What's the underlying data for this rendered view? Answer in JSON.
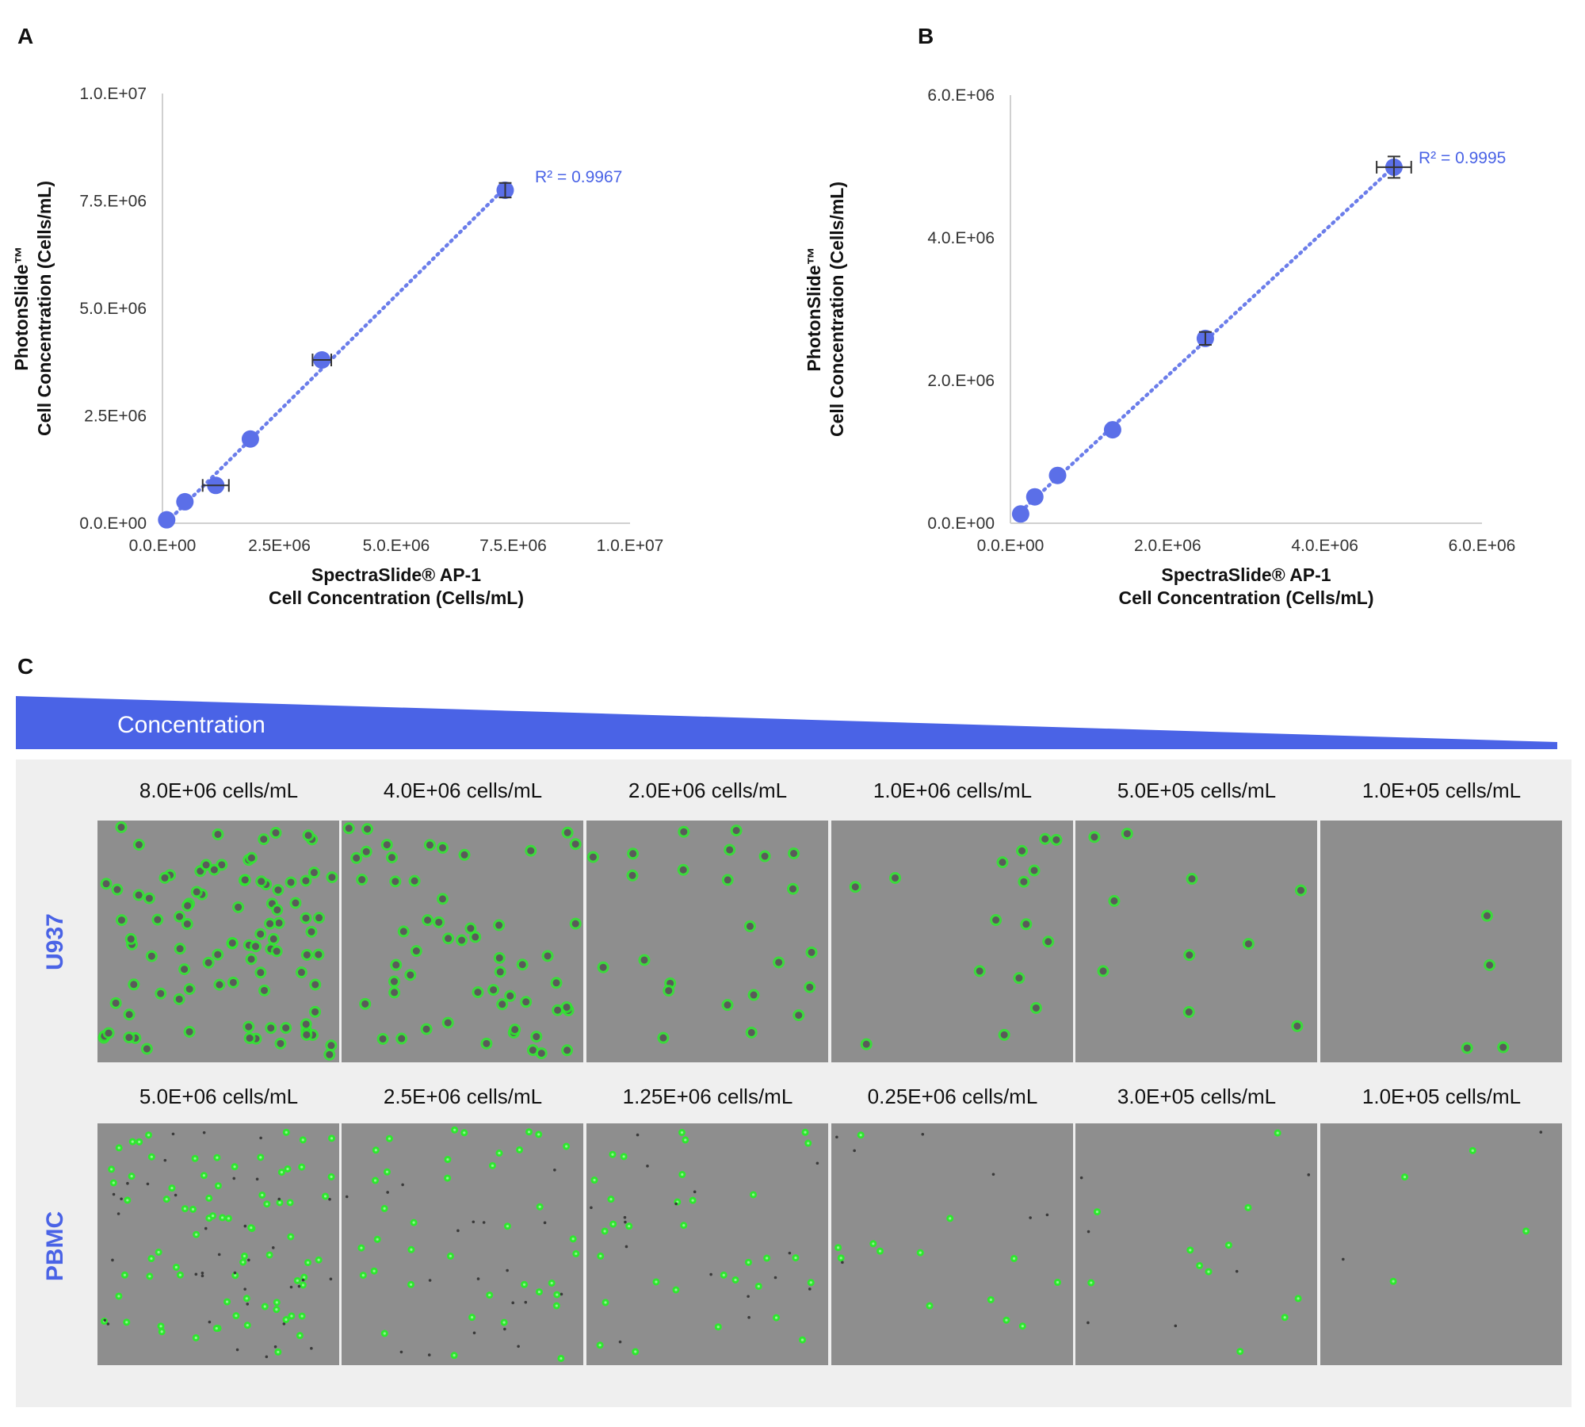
{
  "panels": {
    "a": "A",
    "b": "B",
    "c": "C"
  },
  "chart_data": [
    {
      "type": "scatter",
      "panel": "A",
      "xlabel_line1": "SpectraSlide® AP-1",
      "xlabel_line2": "Cell Concentration (Cells/mL)",
      "ylabel_line1": "PhotonSlide™",
      "ylabel_line2": "Cell Concentration (Cells/mL)",
      "xlim": [
        0,
        10000000
      ],
      "ylim": [
        0,
        10000000
      ],
      "xticks": [
        0,
        2500000,
        5000000,
        7500000,
        10000000
      ],
      "yticks": [
        0,
        2500000,
        5000000,
        7500000,
        10000000
      ],
      "xtick_labels": [
        "0.0.E+00",
        "2.5E+06",
        "5.0.E+06",
        "7.5.E+06",
        "1.0.E+07"
      ],
      "ytick_labels": [
        "0.0.E+00",
        "2.5E+06",
        "5.0.E+06",
        "7.5.E+06",
        "1.0.E+07"
      ],
      "annotation": "R² = 0.9967",
      "trendline": "dotted linear",
      "color": "#5b6fe8",
      "points": [
        {
          "x": 90000,
          "y": 80000,
          "xerr": 0
        },
        {
          "x": 480000,
          "y": 500000,
          "xerr": 0
        },
        {
          "x": 1140000,
          "y": 880000,
          "xerr": 280000
        },
        {
          "x": 1880000,
          "y": 1960000,
          "xerr": 0
        },
        {
          "x": 3410000,
          "y": 3800000,
          "xerr": 200000
        },
        {
          "x": 7330000,
          "y": 7750000,
          "xerr": 0,
          "yerr": 170000
        }
      ]
    },
    {
      "type": "scatter",
      "panel": "B",
      "xlabel_line1": "SpectraSlide® AP-1",
      "xlabel_line2": "Cell Concentration (Cells/mL)",
      "ylabel_line1": "PhotonSlide™",
      "ylabel_line2": "Cell Concentration (Cells/mL)",
      "xlim": [
        0,
        6000000
      ],
      "ylim": [
        0,
        6000000
      ],
      "xticks": [
        0,
        2000000,
        4000000,
        6000000
      ],
      "yticks": [
        0,
        2000000,
        4000000,
        6000000
      ],
      "xtick_labels": [
        "0.0.E+00",
        "2.0.E+06",
        "4.0.E+06",
        "6.0.E+06"
      ],
      "ytick_labels": [
        "0.0.E+00",
        "2.0.E+06",
        "4.0.E+06",
        "6.0.E+06"
      ],
      "annotation": "R² = 0.9995",
      "trendline": "dotted linear",
      "color": "#5b6fe8",
      "points": [
        {
          "x": 130000,
          "y": 130000,
          "xerr": 0
        },
        {
          "x": 310000,
          "y": 370000,
          "xerr": 0
        },
        {
          "x": 600000,
          "y": 670000,
          "xerr": 0
        },
        {
          "x": 1300000,
          "y": 1310000,
          "xerr": 0
        },
        {
          "x": 2480000,
          "y": 2590000,
          "xerr": 0,
          "yerr": 90000
        },
        {
          "x": 4880000,
          "y": 4990000,
          "xerr": 220000,
          "yerr": 150000
        }
      ]
    }
  ],
  "concentration_label": "Concentration",
  "rows": [
    {
      "label": "U937",
      "headers": [
        "8.0E+06 cells/mL",
        "4.0E+06 cells/mL",
        "2.0E+06 cells/mL",
        "1.0E+06 cells/mL",
        "5.0E+05 cells/mL",
        "1.0E+05 cells/mL"
      ],
      "cell_counts": [
        95,
        55,
        24,
        16,
        10,
        4
      ],
      "cell_style": "large ringed"
    },
    {
      "label": "PBMC",
      "headers": [
        "5.0E+06 cells/mL",
        "2.5E+06 cells/mL",
        "1.25E+06 cells/mL",
        "0.25E+06 cells/mL",
        "3.0E+05 cells/mL",
        "1.0E+05 cells/mL"
      ],
      "cell_counts": [
        75,
        38,
        32,
        13,
        11,
        4
      ],
      "cell_style": "small bright"
    }
  ],
  "colors": {
    "accent": "#4a63e6",
    "cell_green": "#2ee82e",
    "tile_gray": "#8e8e8e",
    "panel_bg": "#efefef"
  }
}
